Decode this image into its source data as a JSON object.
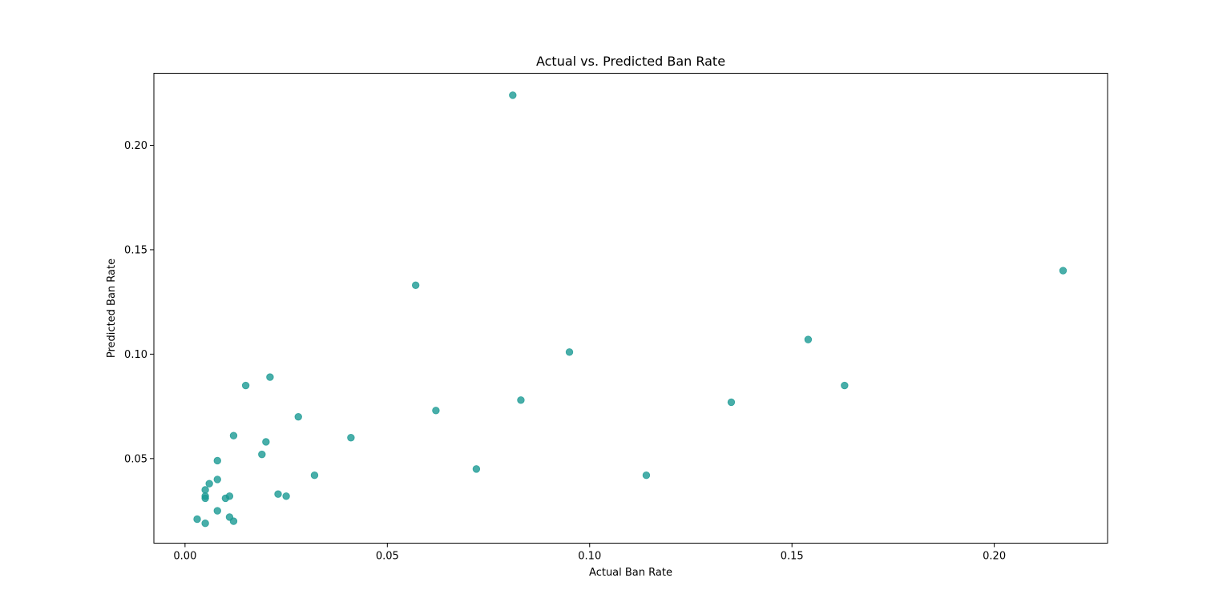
{
  "chart_data": {
    "type": "scatter",
    "title": "Actual vs. Predicted Ban Rate",
    "xlabel": "Actual Ban Rate",
    "ylabel": "Predicted Ban Rate",
    "xlim": [
      -0.0077,
      0.228
    ],
    "ylim": [
      0.0095,
      0.2345
    ],
    "xticks": [
      0.0,
      0.05,
      0.1,
      0.15,
      0.2
    ],
    "xtick_labels": [
      "0.00",
      "0.05",
      "0.10",
      "0.15",
      "0.20"
    ],
    "yticks": [
      0.05,
      0.1,
      0.15,
      0.2
    ],
    "ytick_labels": [
      "0.05",
      "0.10",
      "0.15",
      "0.20"
    ],
    "grid": false,
    "marker_color": "#1a9a94",
    "marker_alpha": 0.8,
    "points": [
      {
        "x": 0.081,
        "y": 0.224
      },
      {
        "x": 0.217,
        "y": 0.14
      },
      {
        "x": 0.057,
        "y": 0.133
      },
      {
        "x": 0.154,
        "y": 0.107
      },
      {
        "x": 0.095,
        "y": 0.101
      },
      {
        "x": 0.021,
        "y": 0.089
      },
      {
        "x": 0.015,
        "y": 0.085
      },
      {
        "x": 0.163,
        "y": 0.085
      },
      {
        "x": 0.083,
        "y": 0.078
      },
      {
        "x": 0.135,
        "y": 0.077
      },
      {
        "x": 0.062,
        "y": 0.073
      },
      {
        "x": 0.028,
        "y": 0.07
      },
      {
        "x": 0.012,
        "y": 0.061
      },
      {
        "x": 0.041,
        "y": 0.06
      },
      {
        "x": 0.02,
        "y": 0.058
      },
      {
        "x": 0.019,
        "y": 0.052
      },
      {
        "x": 0.008,
        "y": 0.049
      },
      {
        "x": 0.072,
        "y": 0.045
      },
      {
        "x": 0.032,
        "y": 0.042
      },
      {
        "x": 0.114,
        "y": 0.042
      },
      {
        "x": 0.008,
        "y": 0.04
      },
      {
        "x": 0.006,
        "y": 0.038
      },
      {
        "x": 0.005,
        "y": 0.035
      },
      {
        "x": 0.023,
        "y": 0.033
      },
      {
        "x": 0.005,
        "y": 0.032
      },
      {
        "x": 0.025,
        "y": 0.032
      },
      {
        "x": 0.011,
        "y": 0.032
      },
      {
        "x": 0.01,
        "y": 0.031
      },
      {
        "x": 0.005,
        "y": 0.031
      },
      {
        "x": 0.008,
        "y": 0.025
      },
      {
        "x": 0.011,
        "y": 0.022
      },
      {
        "x": 0.003,
        "y": 0.021
      },
      {
        "x": 0.012,
        "y": 0.02
      },
      {
        "x": 0.005,
        "y": 0.019
      }
    ]
  }
}
